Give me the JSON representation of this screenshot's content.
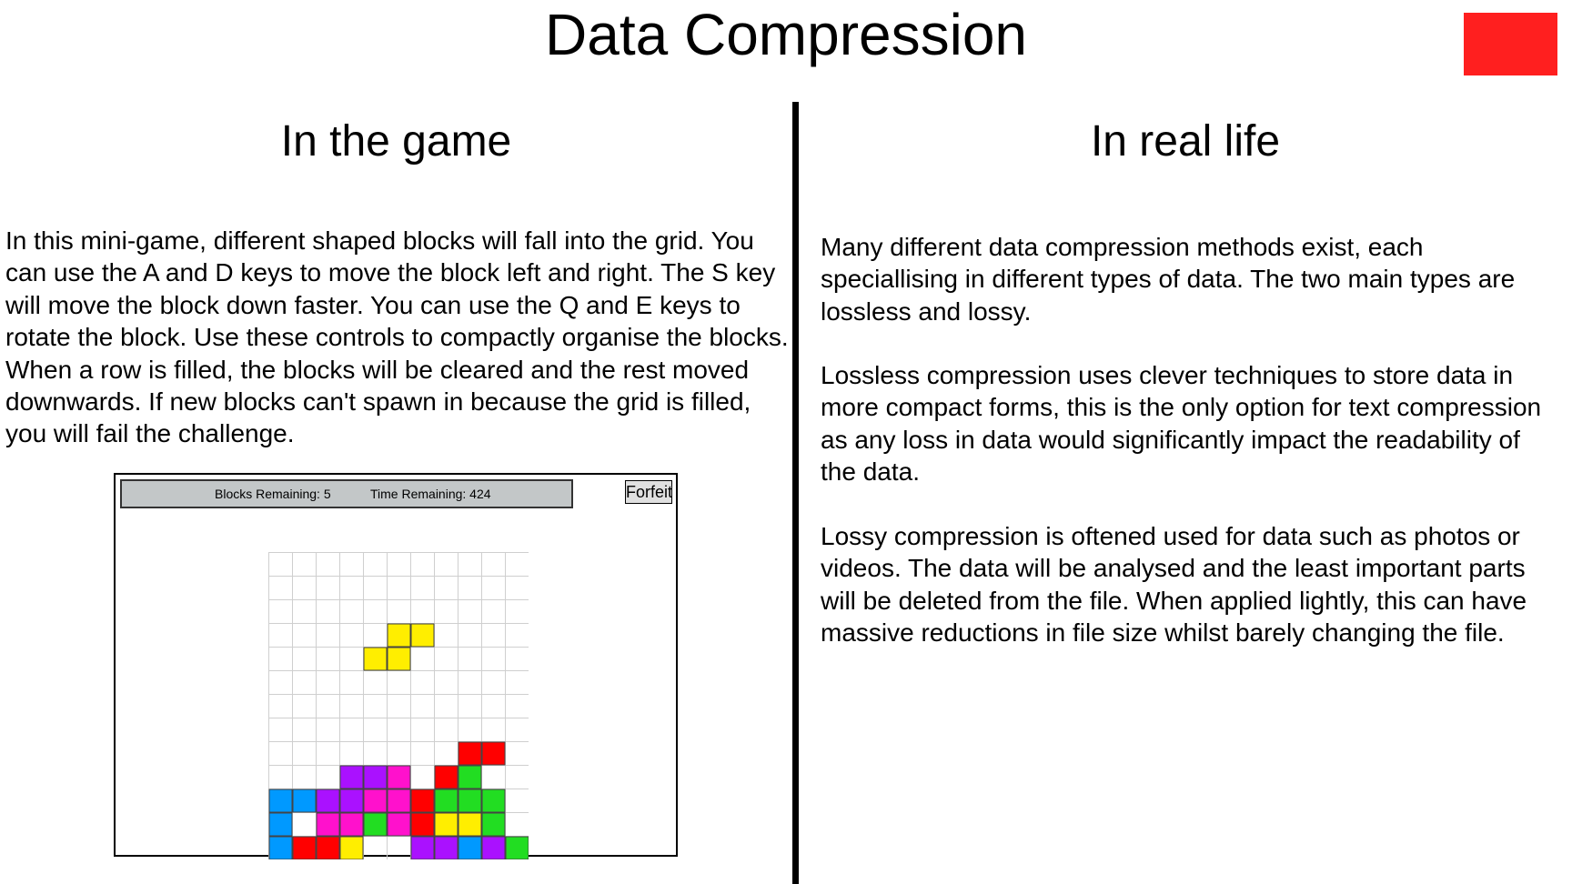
{
  "page": {
    "title": "Data Compression"
  },
  "colors": {
    "close_button": "#ff1f1f",
    "divider": "#000000",
    "status_bar_bg": "#c3c7c8",
    "grid_line": "#cfcfcf"
  },
  "left": {
    "heading": "In the game",
    "text": "In this mini-game, different shaped blocks will fall into the grid. You can use the A and D keys to move the block left and right. The S key will move the block down faster. You can use the Q and E keys to rotate the block. Use these controls to compactly organise the blocks. When a row is filled, the blocks will be cleared and the rest moved downwards. If new blocks can't spawn in because the grid is filled, you will fail the challenge."
  },
  "right": {
    "heading": "In real life",
    "paragraphs": [
      "Many different data compression methods exist, each speciallising in different types of data. The two main types are lossless and lossy.",
      "Lossless compression uses clever techniques to store data in more compact forms, this is the only option for text compression as any loss in data would significantly impact the readability of the data.",
      "Lossy compression is oftened used for data such as photos or videos. The data will be analysed and the least important parts will be deleted from the file. When applied lightly, this can have massive reductions in file size whilst barely changing the file."
    ]
  },
  "game": {
    "blocks_remaining_text": "Blocks Remaining: 5",
    "time_remaining_text": "Time Remaining: 424",
    "forfeit_label": "Forfeit",
    "grid": {
      "columns": 11,
      "rows": 13,
      "palette": {
        "Y": "#ffee00",
        "R": "#ff0000",
        "G": "#22dd22",
        "P": "#aa11ff",
        "M": "#ff11cc",
        "B": "#0099ff"
      },
      "cells": [
        "...........",
        "...........",
        "...........",
        ".....YY....",
        "....YY.....",
        "...........",
        "...........",
        "...........",
        "........RR.",
        "...PPM.RG..",
        "BBPPMMRGGG.",
        "B.MMGMRYYG.",
        "BRRY..PPBPG"
      ]
    }
  }
}
